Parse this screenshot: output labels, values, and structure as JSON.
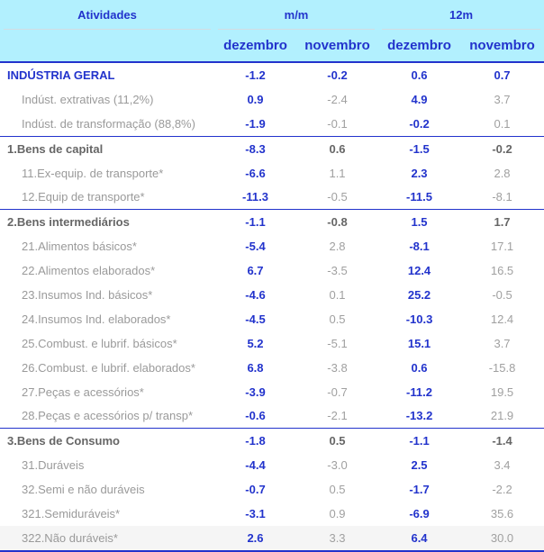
{
  "header": {
    "activities": "Atividades",
    "mm": "m/m",
    "y12": "12m",
    "c1": "dezembro",
    "c2": "novembro",
    "c3": "dezembro",
    "c4": "novembro"
  },
  "rows": [
    {
      "type": "top",
      "label": "INDÚSTRIA GERAL",
      "v": [
        "-1.2",
        "-0.2",
        "0.6",
        "0.7"
      ]
    },
    {
      "type": "sub",
      "label": "Indúst. extrativas (11,2%)",
      "v": [
        "0.9",
        "-2.4",
        "4.9",
        "3.7"
      ]
    },
    {
      "type": "sub",
      "label": "Indúst. de transformação (88,8%)",
      "v": [
        "-1.9",
        "-0.1",
        "-0.2",
        "0.1"
      ]
    },
    {
      "type": "sec",
      "label": "1.Bens de capital",
      "v": [
        "-8.3",
        "0.6",
        "-1.5",
        "-0.2"
      ]
    },
    {
      "type": "sub",
      "label": "11.Ex-equip. de transporte*",
      "v": [
        "-6.6",
        "1.1",
        "2.3",
        "2.8"
      ]
    },
    {
      "type": "sub",
      "label": "12.Equip de transporte*",
      "v": [
        "-11.3",
        "-0.5",
        "-11.5",
        "-8.1"
      ]
    },
    {
      "type": "sec",
      "label": "2.Bens intermediários",
      "v": [
        "-1.1",
        "-0.8",
        "1.5",
        "1.7"
      ]
    },
    {
      "type": "sub",
      "label": "21.Alimentos básicos*",
      "v": [
        "-5.4",
        "2.8",
        "-8.1",
        "17.1"
      ]
    },
    {
      "type": "sub",
      "label": "22.Alimentos elaborados*",
      "v": [
        "6.7",
        "-3.5",
        "12.4",
        "16.5"
      ]
    },
    {
      "type": "sub",
      "label": "23.Insumos Ind. básicos*",
      "v": [
        "-4.6",
        "0.1",
        "25.2",
        "-0.5"
      ]
    },
    {
      "type": "sub",
      "label": "24.Insumos Ind. elaborados*",
      "v": [
        "-4.5",
        "0.5",
        "-10.3",
        "12.4"
      ]
    },
    {
      "type": "sub",
      "label": "25.Combust. e lubrif. básicos*",
      "v": [
        "5.2",
        "-5.1",
        "15.1",
        "3.7"
      ]
    },
    {
      "type": "sub",
      "label": "26.Combust. e lubrif. elaborados*",
      "v": [
        "6.8",
        "-3.8",
        "0.6",
        "-15.8"
      ]
    },
    {
      "type": "sub",
      "label": "27.Peças e acessórios*",
      "v": [
        "-3.9",
        "-0.7",
        "-11.2",
        "19.5"
      ]
    },
    {
      "type": "sub",
      "label": "28.Peças e acessórios p/ transp*",
      "v": [
        "-0.6",
        "-2.1",
        "-13.2",
        "21.9"
      ]
    },
    {
      "type": "sec",
      "label": "3.Bens de Consumo",
      "v": [
        "-1.8",
        "0.5",
        "-1.1",
        "-1.4"
      ]
    },
    {
      "type": "sub",
      "label": "31.Duráveis",
      "v": [
        "-4.4",
        "-3.0",
        "2.5",
        "3.4"
      ]
    },
    {
      "type": "sub",
      "label": "32.Semi e não duráveis",
      "v": [
        "-0.7",
        "0.5",
        "-1.7",
        "-2.2"
      ]
    },
    {
      "type": "sub",
      "label": "321.Semiduráveis*",
      "v": [
        "-3.1",
        "0.9",
        "-6.9",
        "35.6"
      ]
    },
    {
      "type": "sub",
      "label": "322.Não duráveis*",
      "v": [
        "2.6",
        "3.3",
        "6.4",
        "30.0"
      ]
    }
  ]
}
